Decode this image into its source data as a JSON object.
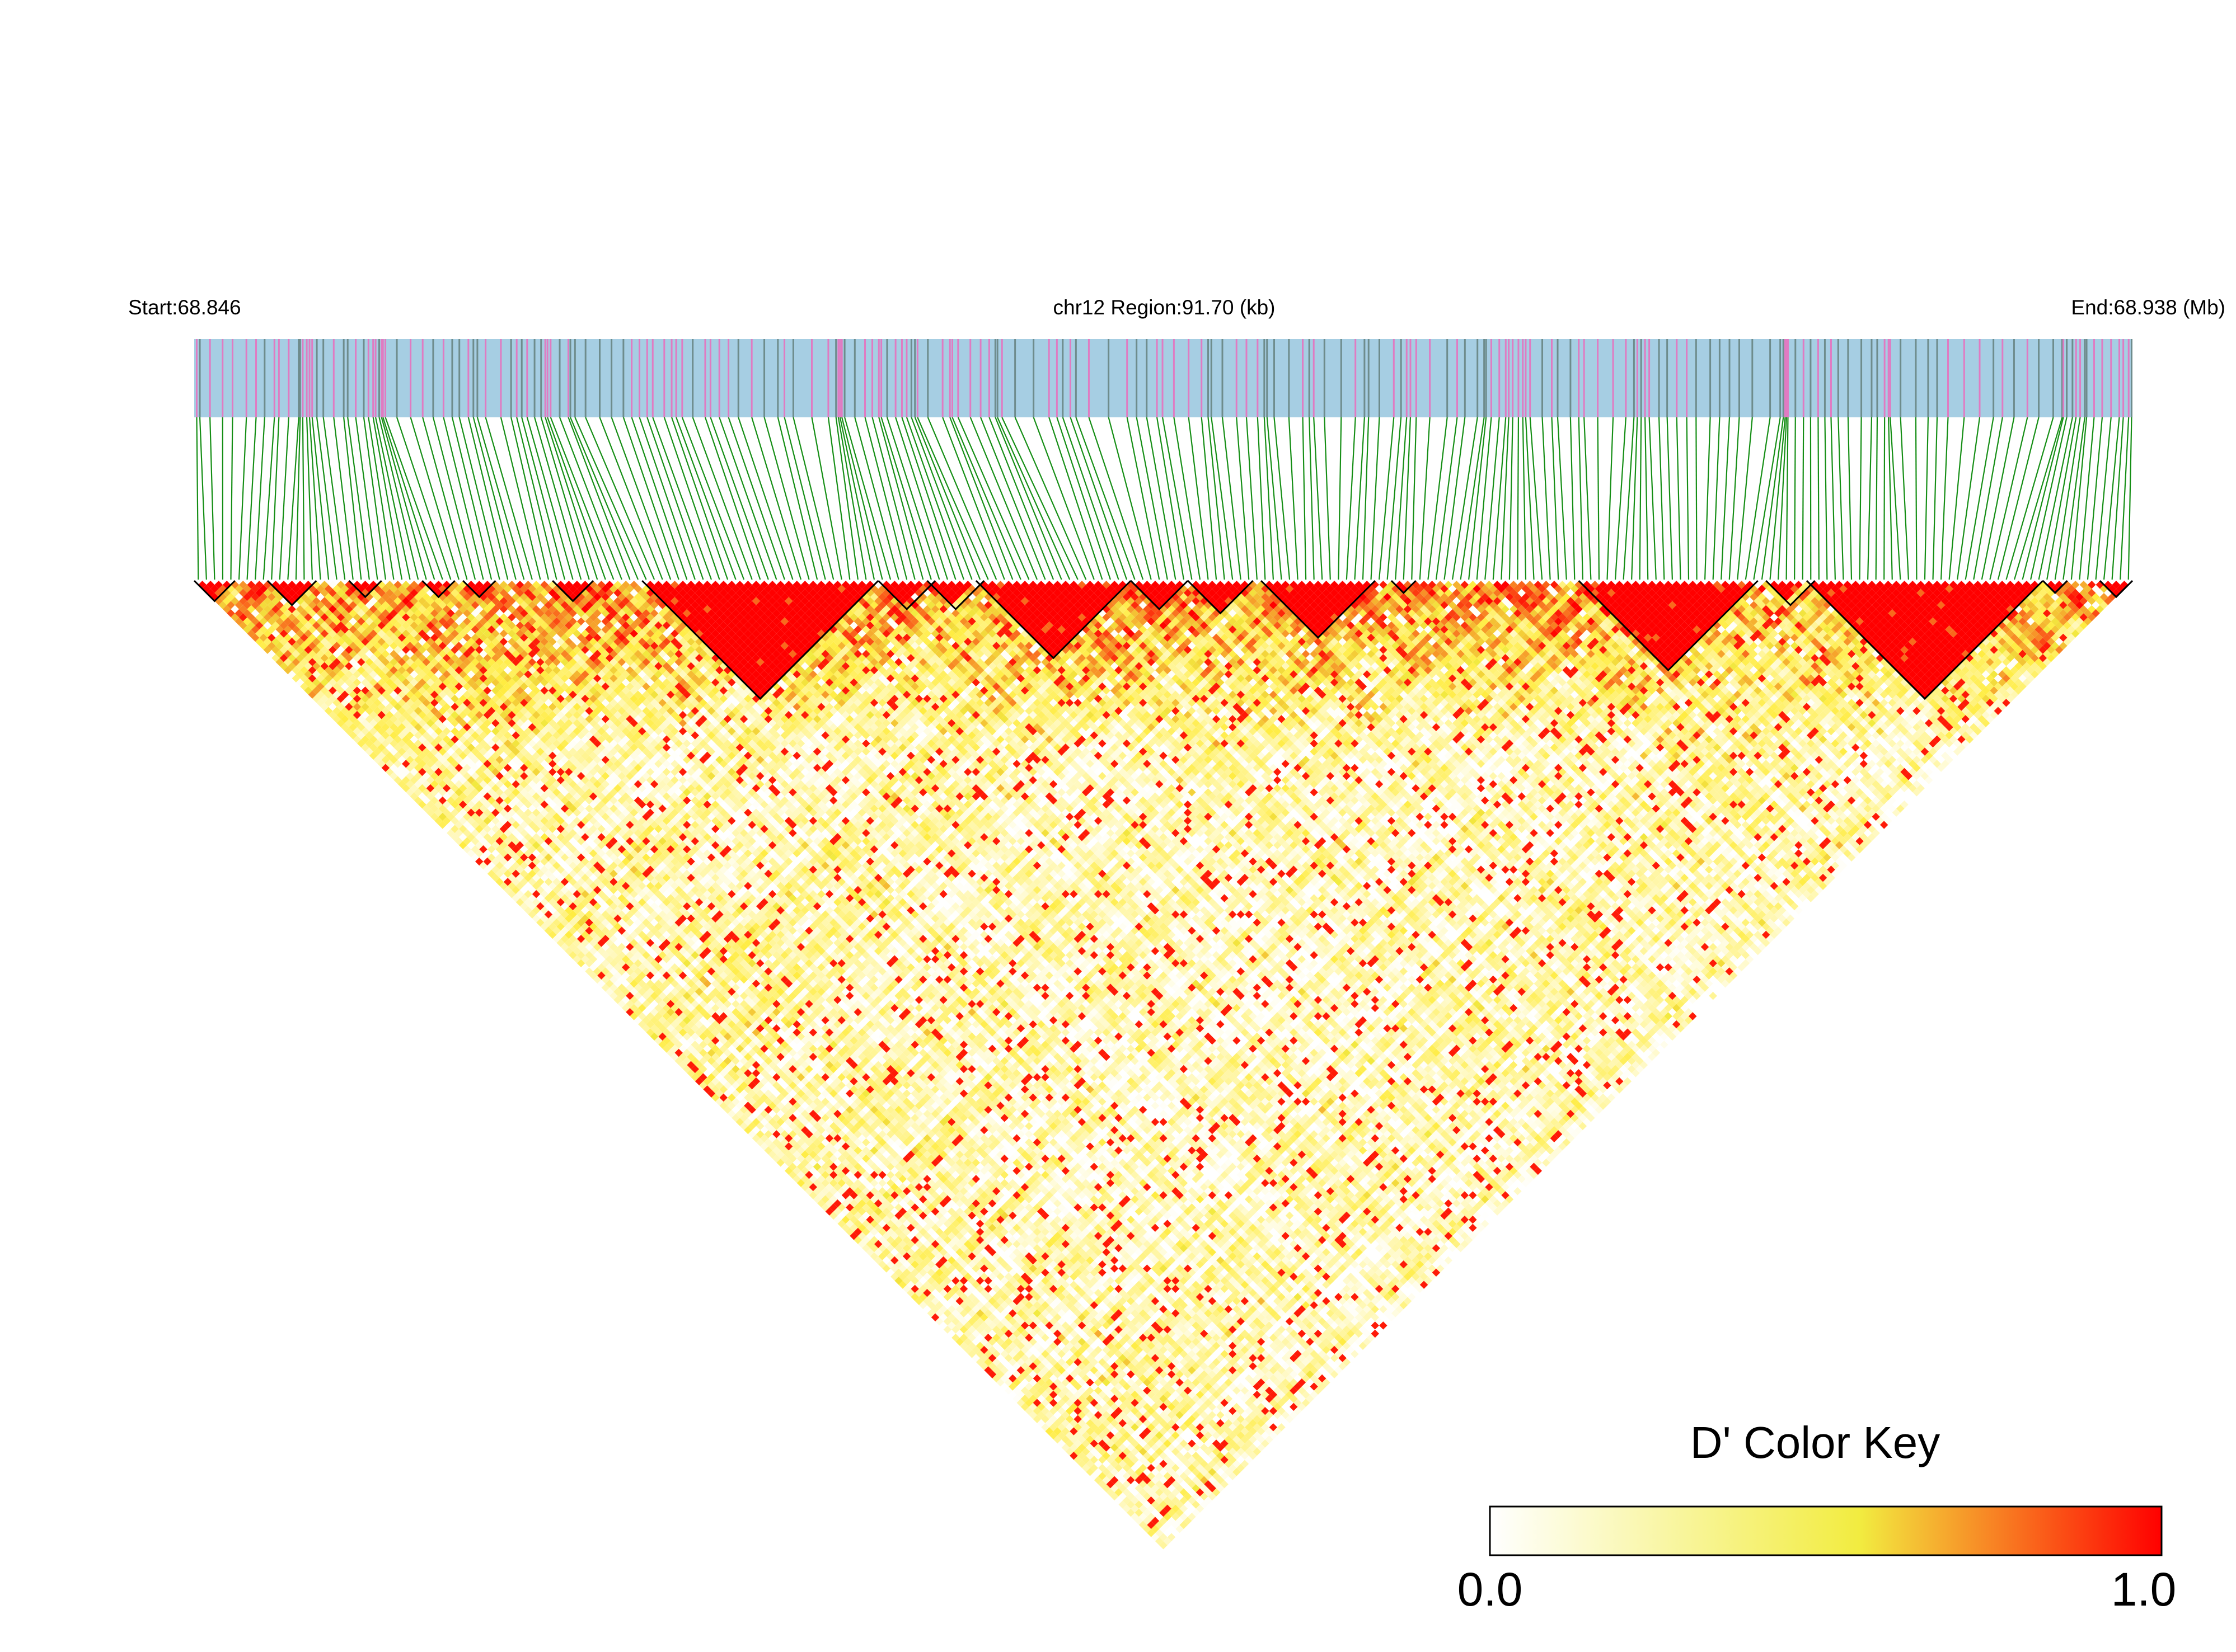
{
  "chart_data": {
    "type": "heatmap",
    "subtype": "linkage-disequilibrium-triangle",
    "chromosome": "chr12",
    "header": {
      "start_label": "Start:68.846",
      "region_label": "chr12 Region:91.70 (kb)",
      "end_label": "End:68.938 (Mb)"
    },
    "region": {
      "start_mb": 68.846,
      "end_mb": 68.938,
      "length_kb": 91.7
    },
    "n_snps": 238,
    "metric": "D'",
    "color_key": {
      "title": "D' Color Key",
      "min_label": "0.0",
      "max_label": "1.0",
      "range": [
        0.0,
        1.0
      ],
      "stops": [
        "#ffffff",
        "#f2ec40",
        "#ff0000"
      ]
    },
    "ld_blocks_snp_index_ranges": [
      [
        0,
        5
      ],
      [
        9,
        15
      ],
      [
        19,
        23
      ],
      [
        28,
        32
      ],
      [
        33,
        37
      ],
      [
        44,
        49
      ],
      [
        55,
        84
      ],
      [
        84,
        91
      ],
      [
        90,
        97
      ],
      [
        96,
        115
      ],
      [
        115,
        122
      ],
      [
        122,
        130
      ],
      [
        131,
        145
      ],
      [
        147,
        150
      ],
      [
        170,
        192
      ],
      [
        193,
        199
      ],
      [
        198,
        227
      ],
      [
        227,
        230
      ],
      [
        234,
        238
      ]
    ],
    "colors": {
      "snp_track": "#a6cee3",
      "snp_tick_functional": "#e07bc2",
      "snp_tick_other": "#6e8c8c",
      "connector_lines": "#158e15",
      "block_outline": "#000000"
    }
  }
}
